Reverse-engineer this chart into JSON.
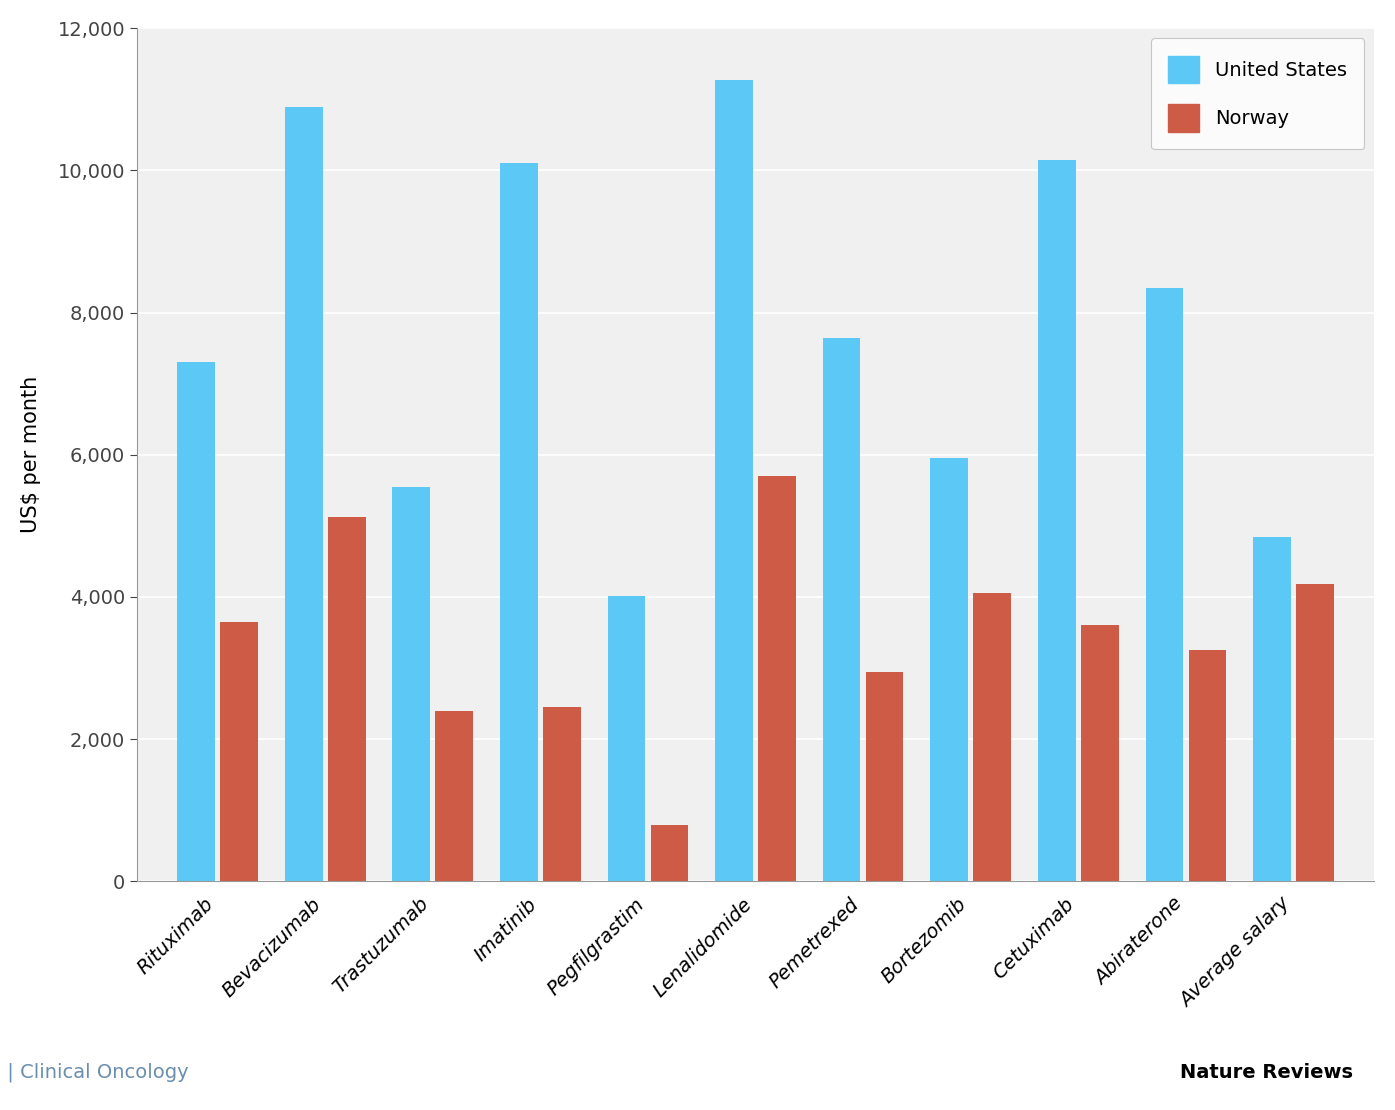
{
  "categories": [
    "Rituximab",
    "Bevacizumab",
    "Trastuzumab",
    "Imatinib",
    "Pegfilgrastim",
    "Lenalidomide",
    "Pemetrexed",
    "Bortezomib",
    "Cetuximab",
    "Abiraterone",
    "Average salary"
  ],
  "us_values": [
    7300,
    10900,
    5550,
    10100,
    4020,
    11280,
    7650,
    5950,
    10150,
    8350,
    4840
  ],
  "norway_values": [
    3650,
    5120,
    2390,
    2450,
    790,
    5700,
    2950,
    4050,
    3600,
    3250,
    4180
  ],
  "us_color": "#5BC8F5",
  "norway_color": "#CD5B45",
  "ylabel": "US$ per month",
  "ylim": [
    0,
    12000
  ],
  "yticks": [
    0,
    2000,
    4000,
    6000,
    8000,
    10000,
    12000
  ],
  "ytick_labels": [
    "0",
    "2,000",
    "4,000",
    "6,000",
    "8,000",
    "10,000",
    "12,000"
  ],
  "us_label": "United States",
  "norway_label": "Norway",
  "plot_bg_color": "#F0F0F0",
  "fig_bg_color": "#FFFFFF",
  "footer_text_black": "Nature Reviews",
  "footer_sep": " | ",
  "footer_text_blue": "Clinical Oncology",
  "footer_blue_color": "#6B8EAE",
  "bar_width": 0.35,
  "bar_gap": 0.05
}
